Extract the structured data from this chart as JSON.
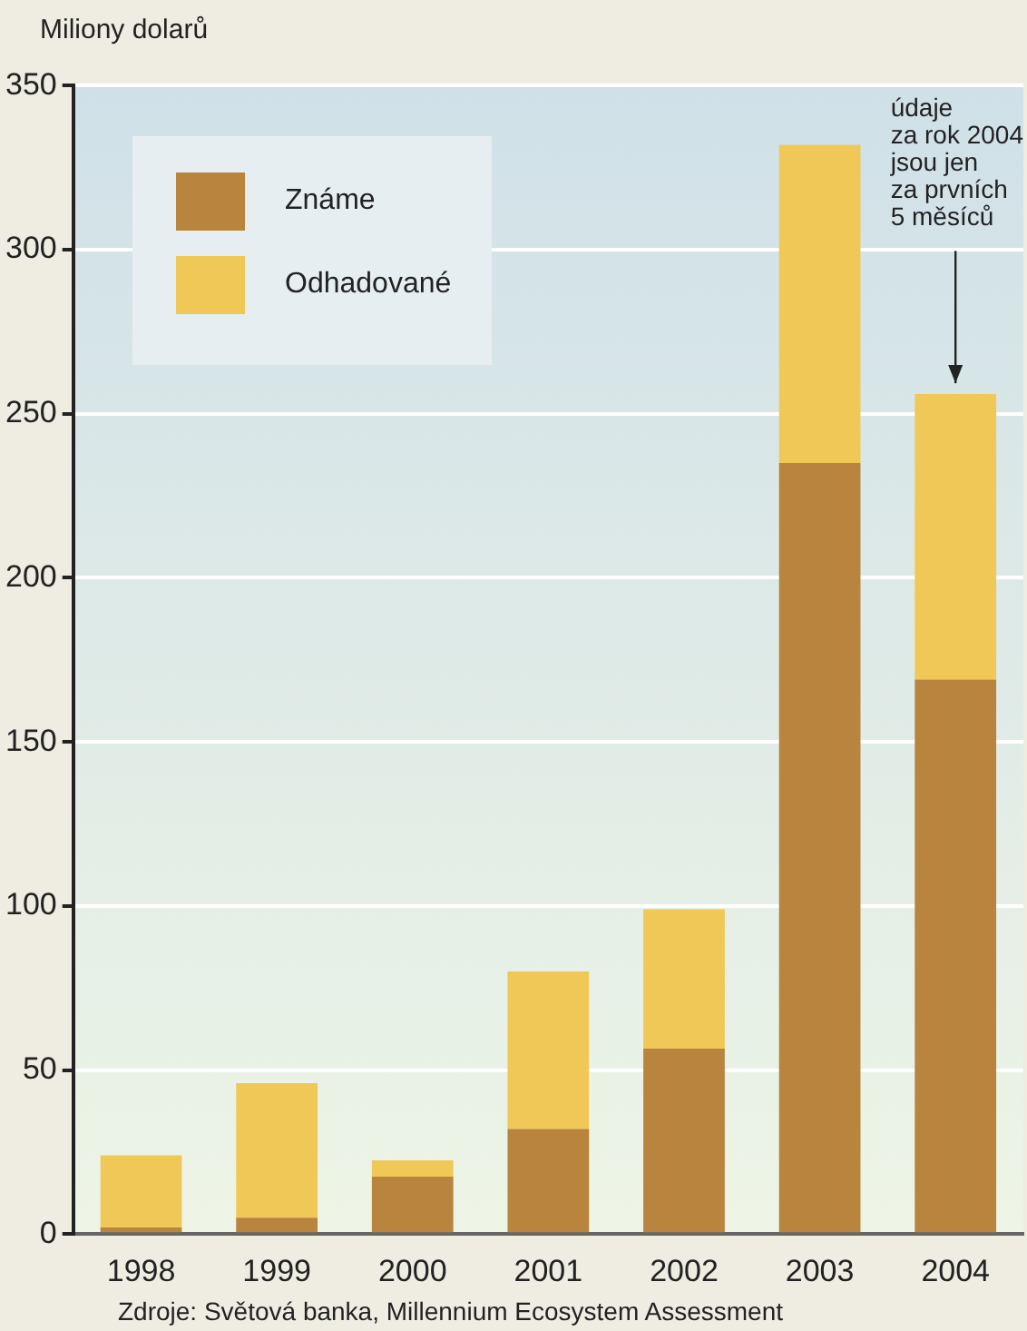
{
  "chart_data": {
    "type": "bar",
    "stacked": true,
    "ylabel": "Miliony dolarů",
    "categories": [
      "1998",
      "1999",
      "2000",
      "2001",
      "2002",
      "2003",
      "2004"
    ],
    "series": [
      {
        "name": "Známe",
        "color": "#b9843e",
        "values": [
          2,
          5,
          17.5,
          32,
          56.5,
          235,
          169
        ]
      },
      {
        "name": "Odhadované",
        "color": "#f0c858",
        "values": [
          22,
          41,
          5,
          48,
          42.5,
          97,
          87
        ]
      }
    ],
    "ylim": [
      0,
      350
    ],
    "yticks": [
      0,
      50,
      100,
      150,
      200,
      250,
      300,
      350
    ],
    "grid": "y",
    "legend": "top left",
    "annotations": [
      {
        "text": "údaje\nza rok 2004\njsou jen\nza prvních\n5 měsíců",
        "x": "2004",
        "y": 256
      },
      "Zdroje: Světová banka, Millennium Ecosystem Assessment"
    ]
  }
}
